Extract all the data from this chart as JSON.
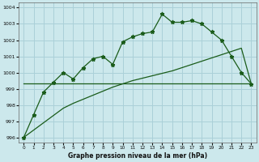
{
  "title": "Graphe pression niveau de la mer (hPa)",
  "background_color": "#cce8ec",
  "grid_color": "#aad0d8",
  "line_color": "#1a5c1a",
  "xlim": [
    -0.5,
    23.5
  ],
  "ylim": [
    995.7,
    1004.3
  ],
  "yticks": [
    996,
    997,
    998,
    999,
    1000,
    1001,
    1002,
    1003,
    1004
  ],
  "xticks": [
    0,
    1,
    2,
    3,
    4,
    5,
    6,
    7,
    8,
    9,
    10,
    11,
    12,
    13,
    14,
    15,
    16,
    17,
    18,
    19,
    20,
    21,
    22,
    23
  ],
  "main_series": [
    996.0,
    997.4,
    998.8,
    999.4,
    1000.0,
    999.6,
    1000.3,
    1000.85,
    1001.0,
    1000.5,
    1001.9,
    1002.2,
    1002.4,
    1002.5,
    1003.6,
    1003.1,
    1003.1,
    1003.2,
    1003.0,
    1002.5,
    1002.0,
    1001.0,
    1000.0,
    999.3
  ],
  "flat_line": [
    999.35,
    999.35,
    999.35,
    999.35,
    999.35,
    999.35,
    999.35,
    999.35,
    999.35,
    999.35,
    999.35,
    999.35,
    999.35,
    999.35,
    999.35,
    999.35,
    999.35,
    999.35,
    999.35,
    999.35,
    999.35,
    999.35,
    999.35,
    999.35
  ],
  "diag_line": [
    996.0,
    996.45,
    996.9,
    997.35,
    997.8,
    998.1,
    998.35,
    998.6,
    998.85,
    999.1,
    999.3,
    999.5,
    999.65,
    999.8,
    999.95,
    1000.1,
    1000.3,
    1000.5,
    1000.7,
    1000.9,
    1001.1,
    1001.3,
    1001.5,
    999.3
  ]
}
